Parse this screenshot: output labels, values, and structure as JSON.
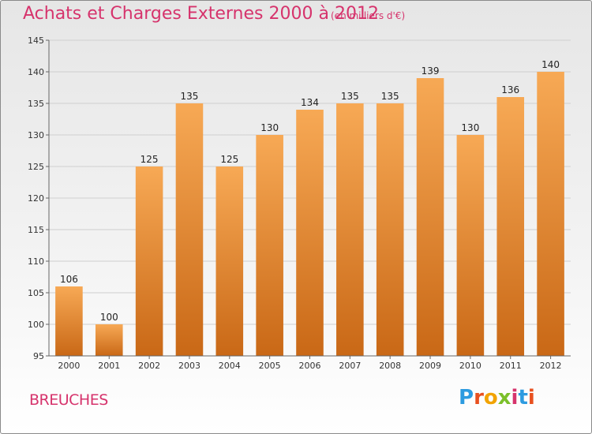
{
  "title": "Achats et Charges Externes 2000 à 2012",
  "subtitle": "(en milliers d'€)",
  "commune": "BREUCHES",
  "logo": {
    "letters": [
      "P",
      "r",
      "o",
      "x",
      "i",
      "t",
      "i"
    ],
    "colors": [
      "#2d9be0",
      "#e8501f",
      "#f2a300",
      "#7bbf2a",
      "#d6336c",
      "#2d9be0",
      "#e8501f"
    ]
  },
  "colors": {
    "accent": "#d6336c",
    "bar_top": "#f7a955",
    "bar_bottom": "#c96816"
  },
  "chart_data": {
    "type": "bar",
    "categories": [
      "2000",
      "2001",
      "2002",
      "2003",
      "2004",
      "2005",
      "2006",
      "2007",
      "2008",
      "2009",
      "2010",
      "2011",
      "2012"
    ],
    "values": [
      106,
      100,
      125,
      135,
      125,
      130,
      134,
      135,
      135,
      139,
      130,
      136,
      140
    ],
    "ylim": [
      95,
      145
    ],
    "yticks": [
      95,
      100,
      105,
      110,
      115,
      120,
      125,
      130,
      135,
      140,
      145
    ],
    "grid": true,
    "legend": "none"
  }
}
